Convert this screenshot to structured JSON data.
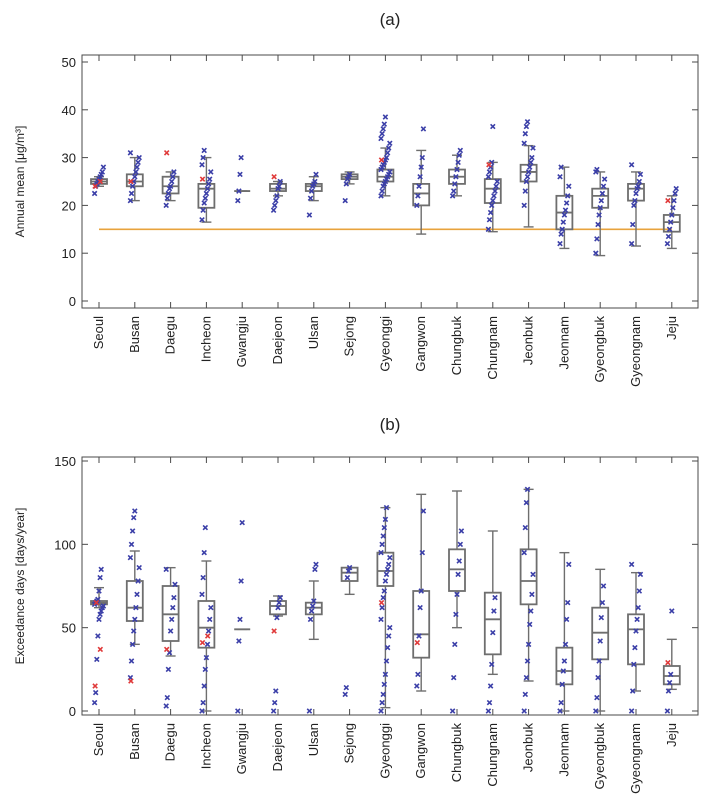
{
  "chart_data": [
    {
      "panel": "(a)",
      "type": "box",
      "ylabel": "Annual mean [μg/m³]",
      "ylim": [
        0,
        50
      ],
      "yticks": [
        0,
        10,
        20,
        30,
        40,
        50
      ],
      "reference_line": {
        "y": 15,
        "color": "#e8a33c"
      },
      "categories": [
        "Seoul",
        "Busan",
        "Daegu",
        "Incheon",
        "Gwangju",
        "Daejeon",
        "Ulsan",
        "Sejong",
        "Gyeonggi",
        "Gangwon",
        "Chungbuk",
        "Chungnam",
        "Jeonbuk",
        "Jeonnam",
        "Gyeongbuk",
        "Gyeongnam",
        "Jeju"
      ],
      "boxes": [
        {
          "min": 24,
          "q1": 24.5,
          "median": 25,
          "q3": 25.5,
          "max": 26
        },
        {
          "min": 21,
          "q1": 24,
          "median": 25,
          "q3": 26.5,
          "max": 30
        },
        {
          "min": 21,
          "q1": 22.5,
          "median": 24,
          "q3": 26,
          "max": 27
        },
        {
          "min": 16.5,
          "q1": 19.5,
          "median": 23.5,
          "q3": 24.5,
          "max": 30
        },
        {
          "min": 23,
          "q1": 23,
          "median": 23,
          "q3": 23,
          "max": 23
        },
        {
          "min": 22,
          "q1": 23,
          "median": 23.5,
          "q3": 24.5,
          "max": 25
        },
        {
          "min": 21,
          "q1": 23,
          "median": 24,
          "q3": 24.5,
          "max": 26
        },
        {
          "min": 24.5,
          "q1": 25.5,
          "median": 26,
          "q3": 26.5,
          "max": 27
        },
        {
          "min": 22,
          "q1": 25,
          "median": 26,
          "q3": 27.5,
          "max": 32
        },
        {
          "min": 14,
          "q1": 20,
          "median": 22.5,
          "q3": 24.5,
          "max": 31.5
        },
        {
          "min": 22,
          "q1": 24.5,
          "median": 26,
          "q3": 27.5,
          "max": 30.5
        },
        {
          "min": 14.5,
          "q1": 20.5,
          "median": 23.5,
          "q3": 25.5,
          "max": 29
        },
        {
          "min": 15.5,
          "q1": 25,
          "median": 27,
          "q3": 28.5,
          "max": 32.5
        },
        {
          "min": 11,
          "q1": 15,
          "median": 18.5,
          "q3": 22,
          "max": 28
        },
        {
          "min": 9.5,
          "q1": 19.5,
          "median": 22,
          "q3": 23.5,
          "max": 27
        },
        {
          "min": 11.5,
          "q1": 21,
          "median": 23.5,
          "q3": 24.5,
          "max": 27
        },
        {
          "min": 11,
          "q1": 14.5,
          "median": 16.5,
          "q3": 18,
          "max": 22
        }
      ],
      "points_blue": [
        [
          22.5,
          24,
          24.5,
          25,
          25.5,
          26,
          26.5,
          27,
          28
        ],
        [
          21,
          22.5,
          24,
          25,
          26,
          27,
          28,
          29,
          30,
          31
        ],
        [
          20,
          21.5,
          22.5,
          23.5,
          24,
          25,
          26,
          27
        ],
        [
          17,
          19,
          20.5,
          21.5,
          22.5,
          23.5,
          24.5,
          25.5,
          27,
          28.5,
          30,
          31.5
        ],
        [
          21,
          23,
          26.5,
          30
        ],
        [
          19,
          20,
          21,
          22,
          23.5,
          24,
          25
        ],
        [
          18,
          21.5,
          23,
          24,
          24.5,
          25,
          26.5
        ],
        [
          21,
          24.5,
          25.5,
          26,
          26.5
        ],
        [
          22,
          23,
          24,
          24.5,
          25,
          25.5,
          26,
          26.5,
          27,
          27.5,
          28,
          28.5,
          29,
          29.5,
          30,
          31,
          32,
          33,
          34,
          35,
          36,
          37,
          38.5
        ],
        [
          20,
          22,
          24,
          26,
          28,
          30,
          36
        ],
        [
          22,
          23,
          24.5,
          26,
          27.5,
          29,
          30.5,
          31.5
        ],
        [
          15,
          17,
          18.5,
          20,
          21,
          22,
          23,
          24,
          25,
          26,
          27,
          28,
          29,
          36.5
        ],
        [
          20,
          23,
          25,
          26,
          27,
          28,
          29,
          30,
          32,
          33,
          35,
          36.5,
          37.5
        ],
        [
          12,
          14,
          15,
          16.5,
          18,
          19,
          20.5,
          22,
          24,
          26,
          28
        ],
        [
          10,
          13,
          16,
          18,
          19.5,
          21,
          22.5,
          24,
          25.5,
          27,
          27.5
        ],
        [
          12,
          16,
          20,
          21,
          22.5,
          23.5,
          24,
          25,
          26.5,
          28.5
        ],
        [
          12,
          13.5,
          15,
          16.5,
          18,
          19.5,
          21,
          22.5,
          23.5
        ]
      ],
      "points_red": [
        [
          24,
          25
        ],
        [
          25
        ],
        [
          31
        ],
        [
          25.5
        ],
        [],
        [
          26
        ],
        [],
        [],
        [
          29.5
        ],
        [],
        [],
        [
          28.5
        ],
        [],
        [],
        [],
        [],
        [
          21
        ]
      ]
    },
    {
      "panel": "(b)",
      "type": "box",
      "ylabel": "Exceedance days [days/year]",
      "ylim": [
        0,
        150
      ],
      "yticks": [
        0,
        50,
        100,
        150
      ],
      "categories": [
        "Seoul",
        "Busan",
        "Daegu",
        "Incheon",
        "Gwangju",
        "Daejeon",
        "Ulsan",
        "Sejong",
        "Gyeonggi",
        "Gangwon",
        "Chungbuk",
        "Chungnam",
        "Jeonbuk",
        "Jeonnam",
        "Gyeongbuk",
        "Gyeongnam",
        "Jeju"
      ],
      "boxes": [
        {
          "min": 62,
          "q1": 64,
          "median": 65,
          "q3": 66,
          "max": 74
        },
        {
          "min": 40,
          "q1": 54,
          "median": 62,
          "q3": 78,
          "max": 96
        },
        {
          "min": 33,
          "q1": 42,
          "median": 58,
          "q3": 75,
          "max": 86
        },
        {
          "min": 0,
          "q1": 38,
          "median": 50,
          "q3": 66,
          "max": 90
        },
        {
          "min": 49,
          "q1": 49,
          "median": 49,
          "q3": 49,
          "max": 49
        },
        {
          "min": 57,
          "q1": 58,
          "median": 63,
          "q3": 66,
          "max": 69
        },
        {
          "min": 43,
          "q1": 58,
          "median": 62,
          "q3": 65,
          "max": 78
        },
        {
          "min": 70,
          "q1": 78,
          "median": 83,
          "q3": 86,
          "max": 86
        },
        {
          "min": 2,
          "q1": 75,
          "median": 84,
          "q3": 95,
          "max": 122
        },
        {
          "min": 12,
          "q1": 32,
          "median": 46,
          "q3": 72,
          "max": 130
        },
        {
          "min": 50,
          "q1": 72,
          "median": 85,
          "q3": 97,
          "max": 132
        },
        {
          "min": 22,
          "q1": 34,
          "median": 55,
          "q3": 71,
          "max": 108
        },
        {
          "min": 18,
          "q1": 64,
          "median": 78,
          "q3": 97,
          "max": 133
        },
        {
          "min": 0,
          "q1": 16,
          "median": 24,
          "q3": 38,
          "max": 95
        },
        {
          "min": 0,
          "q1": 31,
          "median": 47,
          "q3": 62,
          "max": 85
        },
        {
          "min": 12,
          "q1": 28,
          "median": 49,
          "q3": 58,
          "max": 83
        },
        {
          "min": 13,
          "q1": 16,
          "median": 21,
          "q3": 27,
          "max": 43
        }
      ],
      "points_blue": [
        [
          5,
          11,
          31,
          45,
          55,
          58,
          60,
          62,
          63,
          64,
          65,
          66,
          67,
          72,
          80,
          85
        ],
        [
          20,
          30,
          40,
          48,
          55,
          62,
          70,
          78,
          86,
          92,
          100,
          108,
          116,
          120
        ],
        [
          3,
          8,
          25,
          35,
          48,
          55,
          62,
          68,
          76,
          85
        ],
        [
          0,
          5,
          15,
          25,
          32,
          40,
          48,
          55,
          62,
          70,
          80,
          95,
          110
        ],
        [
          0,
          42,
          55,
          78,
          113
        ],
        [
          0,
          5,
          12,
          56,
          62,
          65,
          68
        ],
        [
          0,
          55,
          60,
          63,
          66,
          85,
          88
        ],
        [
          10,
          14,
          80,
          84,
          86
        ],
        [
          0,
          5,
          10,
          16,
          22,
          30,
          38,
          45,
          50,
          55,
          62,
          68,
          72,
          78,
          82,
          85,
          88,
          92,
          95,
          100,
          105,
          110,
          115,
          122
        ],
        [
          15,
          22,
          45,
          62,
          72,
          95,
          120
        ],
        [
          0,
          20,
          40,
          58,
          70,
          82,
          90,
          100,
          108
        ],
        [
          0,
          5,
          15,
          28,
          47,
          60,
          68
        ],
        [
          0,
          10,
          20,
          30,
          40,
          52,
          60,
          70,
          82,
          95,
          110,
          125,
          133
        ],
        [
          0,
          5,
          16,
          24,
          30,
          40,
          55,
          65,
          88
        ],
        [
          0,
          8,
          20,
          30,
          42,
          56,
          65,
          75
        ],
        [
          0,
          12,
          28,
          38,
          48,
          55,
          62,
          72,
          82,
          88
        ],
        [
          0,
          12,
          17,
          22,
          60
        ]
      ],
      "points_red": [
        [
          15,
          37,
          65
        ],
        [
          18
        ],
        [
          37
        ],
        [
          41,
          45
        ],
        [],
        [
          48
        ],
        [],
        [],
        [
          65
        ],
        [
          41
        ],
        [],
        [],
        [],
        [],
        [],
        [],
        [
          29
        ]
      ]
    }
  ],
  "colors": {
    "box": "#6e6e6e",
    "blue_marker": "#3b3fa8",
    "red_marker": "#e03a3a",
    "reference_line": "#e8a33c",
    "frame": "#4a4a4a"
  }
}
